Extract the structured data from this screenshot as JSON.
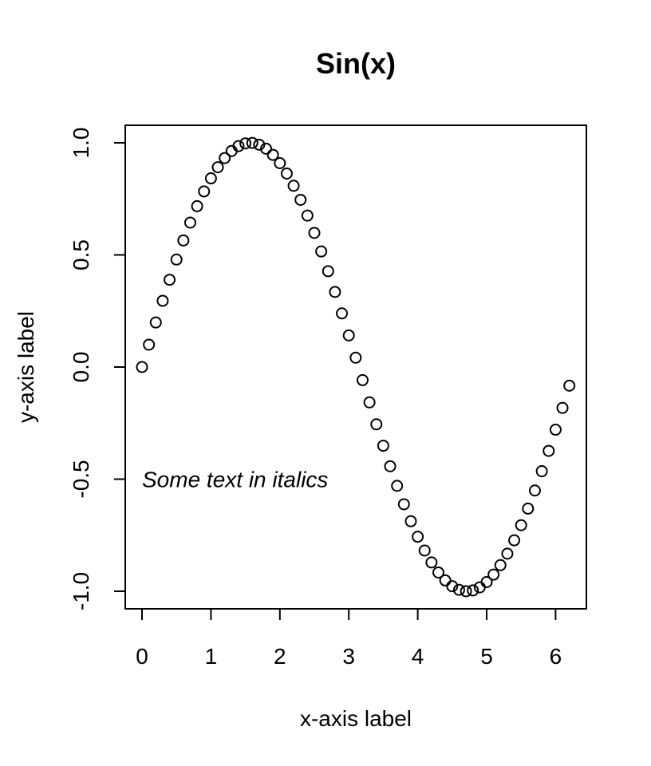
{
  "chart_data": {
    "type": "scatter",
    "title": "Sin(x)",
    "xlabel": "x-axis label",
    "ylabel": "y-axis label",
    "xlim": [
      0,
      6.2
    ],
    "ylim": [
      -1,
      1
    ],
    "x_ticks": [
      0,
      1,
      2,
      3,
      4,
      5,
      6
    ],
    "y_ticks": [
      -1.0,
      -0.5,
      0.0,
      0.5,
      1.0
    ],
    "x_tick_labels": [
      "0",
      "1",
      "2",
      "3",
      "4",
      "5",
      "6"
    ],
    "y_tick_labels": [
      "-1.0",
      "-0.5",
      "0.0",
      "0.5",
      "1.0"
    ],
    "x": [
      0,
      0.1,
      0.2,
      0.3,
      0.4,
      0.5,
      0.6,
      0.7,
      0.8,
      0.9,
      1.0,
      1.1,
      1.2,
      1.3,
      1.4,
      1.5,
      1.6,
      1.7,
      1.8,
      1.9,
      2.0,
      2.1,
      2.2,
      2.3,
      2.4,
      2.5,
      2.6,
      2.7,
      2.8,
      2.9,
      3.0,
      3.1,
      3.2,
      3.3,
      3.4,
      3.5,
      3.6,
      3.7,
      3.8,
      3.9,
      4.0,
      4.1,
      4.2,
      4.3,
      4.4,
      4.5,
      4.6,
      4.7,
      4.8,
      4.9,
      5.0,
      5.1,
      5.2,
      5.3,
      5.4,
      5.5,
      5.6,
      5.7,
      5.8,
      5.9,
      6.0,
      6.1,
      6.2
    ],
    "y": [
      0.0,
      0.0998,
      0.1987,
      0.2955,
      0.3894,
      0.4794,
      0.5646,
      0.6442,
      0.7174,
      0.7833,
      0.8415,
      0.8912,
      0.932,
      0.9636,
      0.9854,
      0.9975,
      0.9996,
      0.9917,
      0.9738,
      0.9463,
      0.9093,
      0.8632,
      0.8085,
      0.7457,
      0.6755,
      0.5985,
      0.5155,
      0.4274,
      0.335,
      0.2392,
      0.1411,
      0.0416,
      -0.0584,
      -0.1577,
      -0.2555,
      -0.3508,
      -0.4425,
      -0.5298,
      -0.6119,
      -0.6878,
      -0.7568,
      -0.8183,
      -0.8716,
      -0.9162,
      -0.9516,
      -0.9775,
      -0.9937,
      -0.9999,
      -0.9962,
      -0.9825,
      -0.9589,
      -0.9258,
      -0.8835,
      -0.8323,
      -0.7728,
      -0.7055,
      -0.6313,
      -0.5507,
      -0.4646,
      -0.3739,
      -0.2794,
      -0.1822,
      -0.0831
    ],
    "marker": "open-circle",
    "annotations": [
      {
        "text": "Some text in italics",
        "x": 0,
        "y": -0.5,
        "style": "italic"
      }
    ],
    "grid": false,
    "legend": "none"
  }
}
